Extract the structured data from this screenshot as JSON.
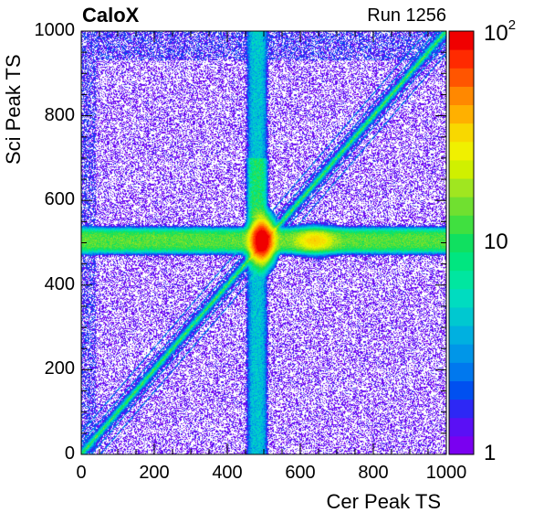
{
  "chart_data": {
    "type": "heatmap",
    "title_left": "CaloX",
    "title_right": "Run 1256",
    "xlabel": "Cer Peak TS",
    "ylabel": "Sci Peak TS",
    "xlim": [
      0,
      1000
    ],
    "ylim": [
      0,
      1000
    ],
    "x_ticks": [
      "0",
      "200",
      "400",
      "600",
      "800",
      "1000"
    ],
    "y_ticks": [
      "0",
      "200",
      "400",
      "600",
      "800",
      "1000"
    ],
    "z_scale": "log",
    "zlim": [
      1,
      100
    ],
    "z_ticks": [
      {
        "value": 1,
        "label": "1"
      },
      {
        "value": 10,
        "label": "10"
      },
      {
        "value": 100,
        "label": "10",
        "exp": "2"
      }
    ],
    "palette": [
      "#7a00f0",
      "#5a10f5",
      "#2d28f5",
      "#0050f0",
      "#0078ee",
      "#0096e8",
      "#00b0e0",
      "#00c8d0",
      "#00dcc0",
      "#00e6a0",
      "#00e680",
      "#10e060",
      "#40e040",
      "#70e030",
      "#a0e620",
      "#d0f000",
      "#f0f000",
      "#f8d800",
      "#ffb000",
      "#ff8800",
      "#ff5500",
      "#ff2a00",
      "#f00000"
    ],
    "features": [
      {
        "name": "horizontal band",
        "y_range": [
          470,
          535
        ],
        "level": "~10-20"
      },
      {
        "name": "vertical band",
        "x_range": [
          455,
          510
        ],
        "level": "~3-5"
      },
      {
        "name": "diagonal x=y",
        "level": "~5-40"
      },
      {
        "name": "hot spot",
        "x": 495,
        "y": 505,
        "level": "~100"
      },
      {
        "name": "secondary spot",
        "x": 640,
        "y": 505,
        "level": "~30"
      }
    ]
  }
}
